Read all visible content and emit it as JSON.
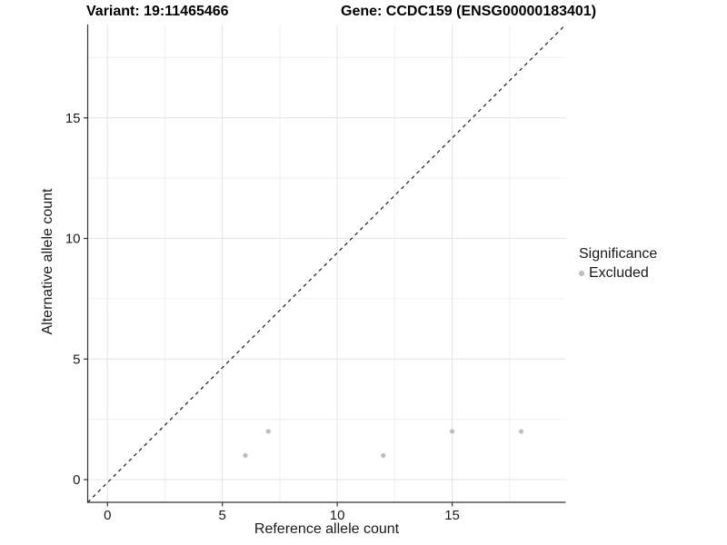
{
  "chart_data": {
    "type": "scatter",
    "title_left": "Variant: 19:11465466",
    "title_right": "Gene: CCDC159 (ENSG00000183401)",
    "xlabel": "Reference allele count",
    "ylabel": "Alternative allele count",
    "x_ticks": [
      0,
      5,
      10,
      15
    ],
    "y_ticks": [
      0,
      5,
      10,
      15
    ],
    "x_minor_ticks": [
      2.5,
      7.5,
      12.5,
      17.5
    ],
    "y_minor_ticks": [
      2.5,
      7.5,
      12.5,
      17.5
    ],
    "xlim": [
      -0.86,
      19.94
    ],
    "ylim": [
      -0.94,
      18.87
    ],
    "grid": true,
    "legend_position": "right",
    "series": [
      {
        "name": "Excluded",
        "color": "#bdbdbd",
        "points": [
          [
            6,
            1
          ],
          [
            7,
            2
          ],
          [
            12,
            1
          ],
          [
            15,
            2
          ],
          [
            18,
            2
          ]
        ]
      }
    ],
    "reference_line": {
      "type": "identity",
      "slope": 1,
      "intercept": 0,
      "style": "dashed",
      "color": "#1a1a1a"
    },
    "legend": {
      "title": "Significance",
      "items": [
        {
          "label": "Excluded",
          "color": "#bdbdbd"
        }
      ]
    },
    "axis_color": "#333333",
    "grid_major_color": "#e4e4e4",
    "grid_minor_color": "#f1f1f1",
    "point_radius": 2.6
  }
}
